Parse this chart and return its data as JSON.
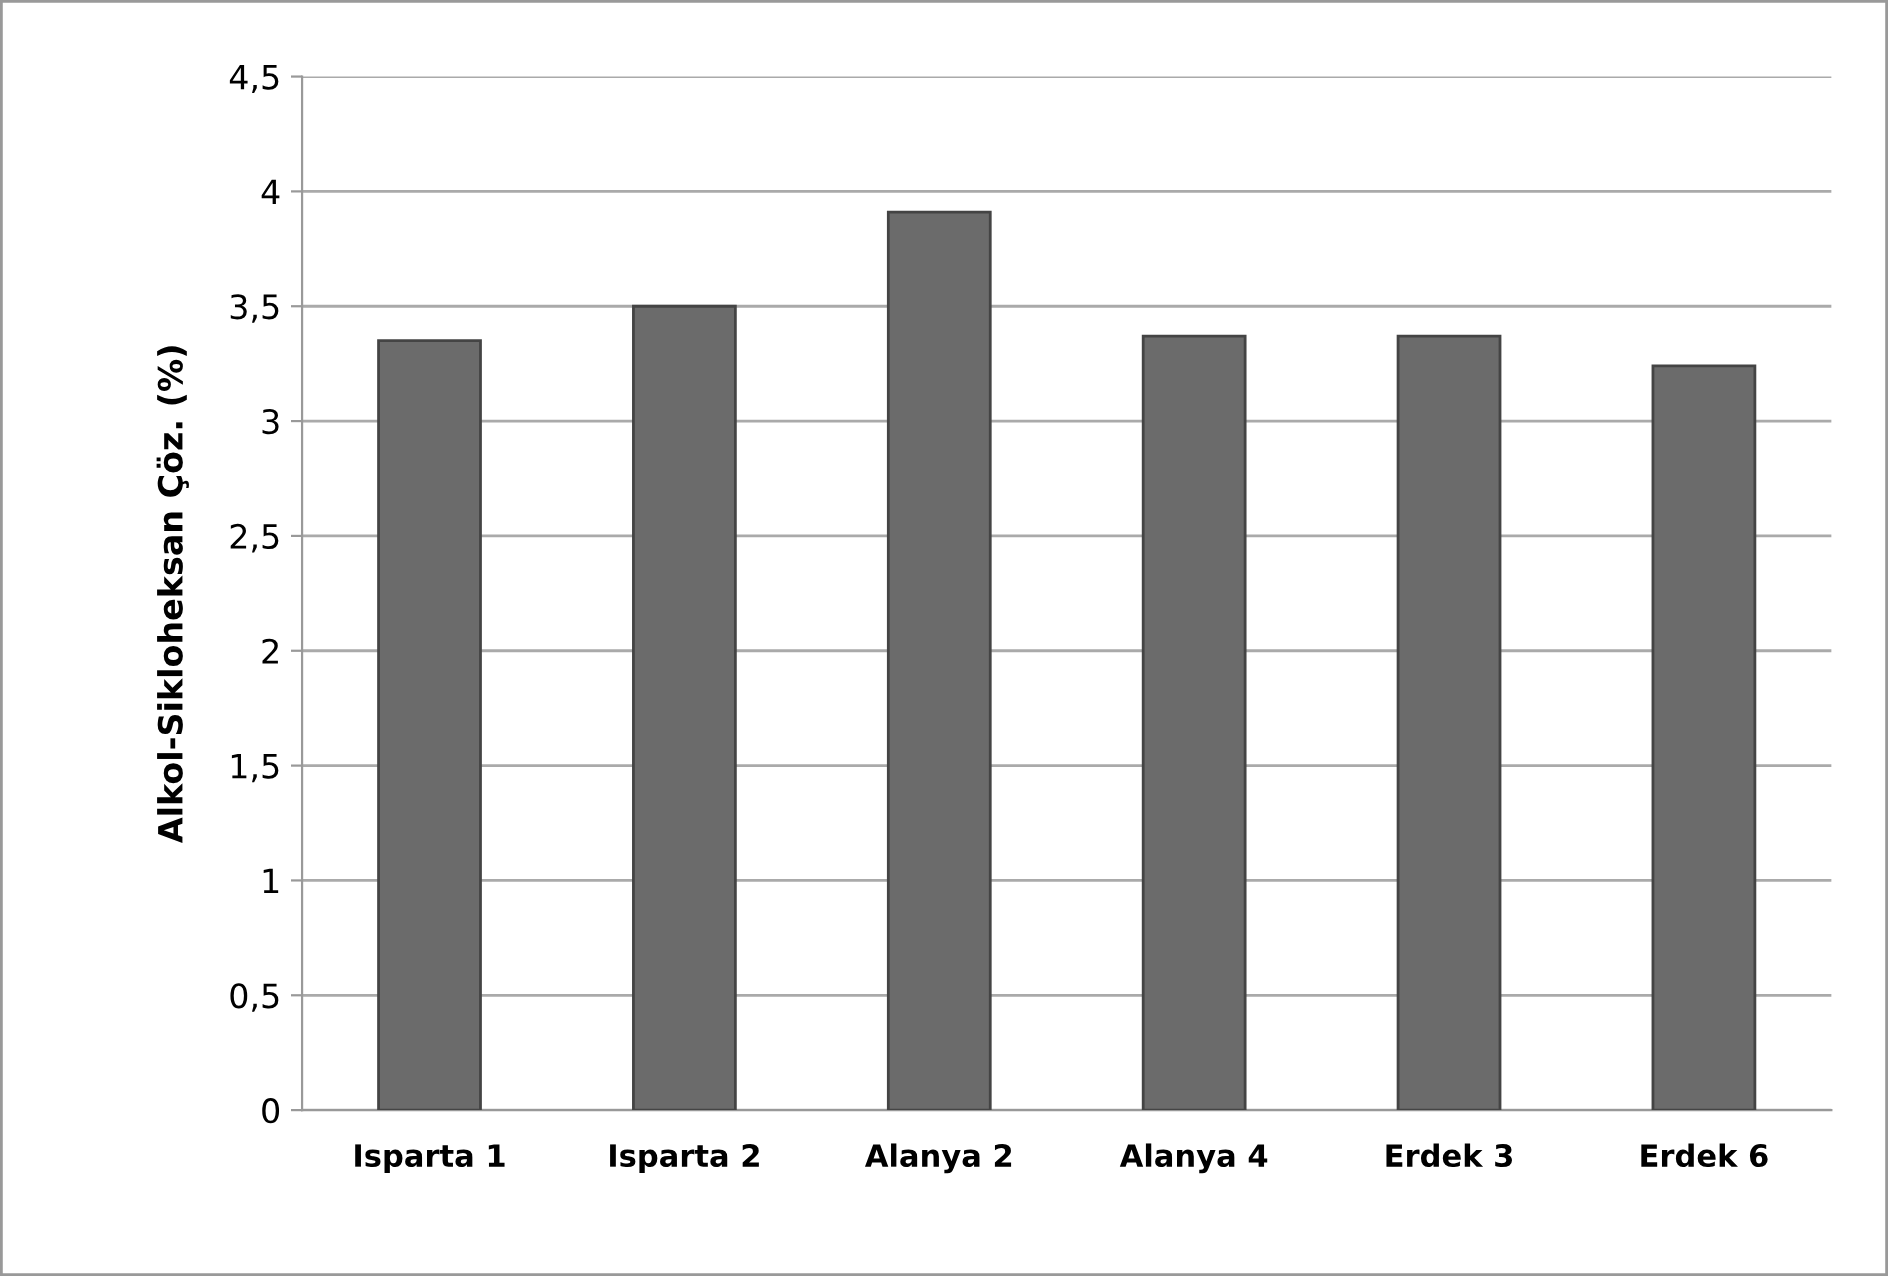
{
  "chart_data": {
    "type": "bar",
    "ylabel": "Alkol-Sikloheksan Çöz. (%)",
    "categories": [
      "Isparta 1",
      "Isparta 2",
      "Alanya 2",
      "Alanya 4",
      "Erdek 3",
      "Erdek 6"
    ],
    "values": [
      3.35,
      3.5,
      3.91,
      3.37,
      3.37,
      3.24
    ],
    "color": "#6b6b6b",
    "ylim": [
      0,
      4.5
    ],
    "yticks": [
      0,
      {
        "value": 0.5,
        "label": "0,5"
      },
      1,
      {
        "value": 1.5,
        "label": "1,5"
      },
      2,
      {
        "value": 2.5,
        "label": "2,5"
      },
      3,
      {
        "value": 3.5,
        "label": "3,5"
      },
      4,
      {
        "value": 4.5,
        "label": "4,5"
      }
    ],
    "grid": "y"
  }
}
